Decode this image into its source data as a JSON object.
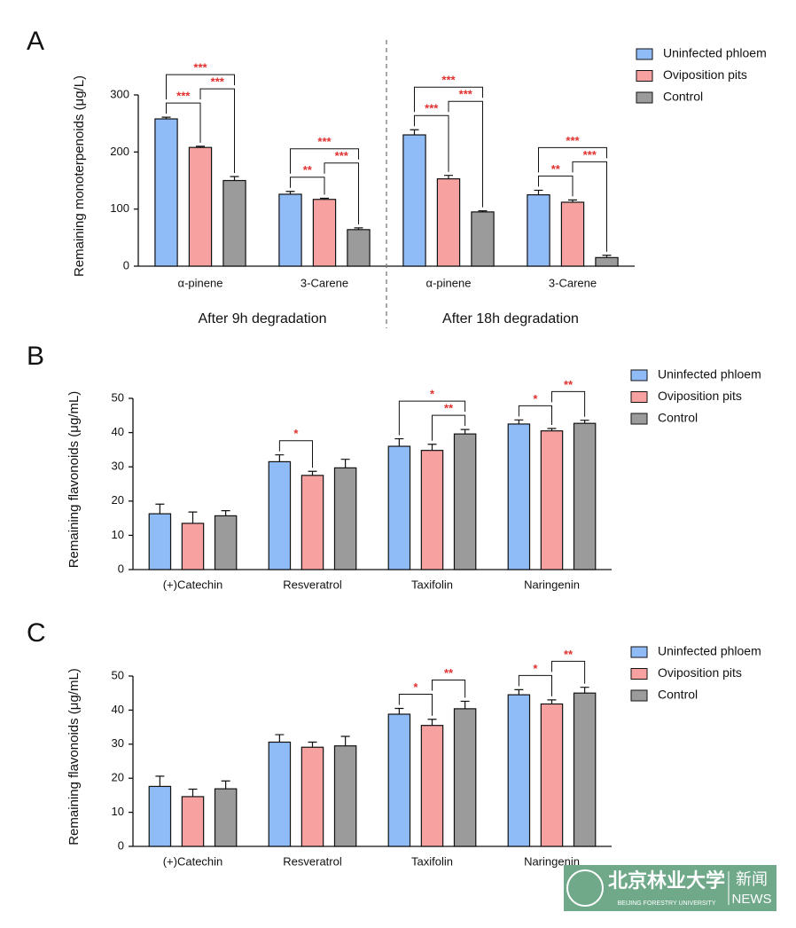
{
  "chart_data": [
    {
      "type": "bar",
      "panel_label": "A",
      "y_label": "Remaining monoterpenoids (μg/L)",
      "categories": [
        "α-pinene",
        "3-Carene",
        "α-pinene",
        "3-Carene"
      ],
      "group_labels": [
        "After 9h degradation",
        "After 18h degradation"
      ],
      "ylim": [
        0,
        300
      ],
      "yticks": [
        0,
        100,
        200,
        300
      ],
      "series": [
        {
          "name": "Uninfected phloem",
          "color": "#8fbcf7",
          "values": [
            258,
            126,
            230,
            125
          ],
          "errors": [
            3,
            5,
            9,
            8
          ]
        },
        {
          "name": "Oviposition pits",
          "color": "#f7a1a1",
          "values": [
            208,
            117,
            153,
            112
          ],
          "errors": [
            2,
            2,
            6,
            4
          ]
        },
        {
          "name": "Control",
          "color": "#9b9b9b",
          "values": [
            150,
            64,
            95,
            15
          ],
          "errors": [
            7,
            3,
            2,
            4
          ]
        }
      ],
      "annotations": [
        {
          "text": "***",
          "category": 0,
          "pair": [
            0,
            1
          ]
        },
        {
          "text": "***",
          "category": 0,
          "pair": [
            1,
            2
          ]
        },
        {
          "text": "***",
          "category": 0,
          "pair": [
            0,
            2
          ]
        },
        {
          "text": "**",
          "category": 1,
          "pair": [
            0,
            1
          ]
        },
        {
          "text": "***",
          "category": 1,
          "pair": [
            1,
            2
          ]
        },
        {
          "text": "***",
          "category": 1,
          "pair": [
            0,
            2
          ]
        },
        {
          "text": "***",
          "category": 2,
          "pair": [
            0,
            1
          ]
        },
        {
          "text": "***",
          "category": 2,
          "pair": [
            1,
            2
          ]
        },
        {
          "text": "***",
          "category": 2,
          "pair": [
            0,
            2
          ]
        },
        {
          "text": "**",
          "category": 3,
          "pair": [
            0,
            1
          ]
        },
        {
          "text": "***",
          "category": 3,
          "pair": [
            1,
            2
          ]
        },
        {
          "text": "***",
          "category": 3,
          "pair": [
            0,
            2
          ]
        }
      ]
    },
    {
      "type": "bar",
      "panel_label": "B",
      "y_label": "Remaining flavonoids (μg/mL)",
      "categories": [
        "(+)Catechin",
        "Resveratrol",
        "Taxifolin",
        "Naringenin"
      ],
      "ylim": [
        0,
        50
      ],
      "yticks": [
        0,
        10,
        20,
        30,
        40,
        50
      ],
      "series": [
        {
          "name": "Uninfected phloem",
          "color": "#8fbcf7",
          "values": [
            16.3,
            31.5,
            36,
            42.5
          ],
          "errors": [
            2.8,
            2,
            2.2,
            1.2
          ]
        },
        {
          "name": "Oviposition pits",
          "color": "#f7a1a1",
          "values": [
            13.5,
            27.5,
            34.8,
            40.5
          ],
          "errors": [
            3.3,
            1.2,
            1.8,
            0.7
          ]
        },
        {
          "name": "Control",
          "color": "#9b9b9b",
          "values": [
            15.7,
            29.7,
            39.6,
            42.7
          ],
          "errors": [
            1.5,
            2.5,
            1.3,
            0.9
          ]
        }
      ],
      "annotations": [
        {
          "text": "*",
          "category": 1,
          "pair": [
            0,
            1
          ]
        },
        {
          "text": "**",
          "category": 2,
          "pair": [
            1,
            2
          ]
        },
        {
          "text": "*",
          "category": 2,
          "pair": [
            0,
            2
          ]
        },
        {
          "text": "*",
          "category": 3,
          "pair": [
            0,
            1
          ]
        },
        {
          "text": "**",
          "category": 3,
          "pair": [
            1,
            2
          ]
        }
      ]
    },
    {
      "type": "bar",
      "panel_label": "C",
      "y_label": "Remaining flavonoids (μg/mL)",
      "categories": [
        "(+)Catechin",
        "Resveratrol",
        "Taxifolin",
        "Naringenin"
      ],
      "ylim": [
        0,
        50
      ],
      "yticks": [
        0,
        10,
        20,
        30,
        40,
        50
      ],
      "series": [
        {
          "name": "Uninfected phloem",
          "color": "#8fbcf7",
          "values": [
            17.6,
            30.6,
            38.8,
            44.5
          ],
          "errors": [
            3,
            2.2,
            1.7,
            1.5
          ]
        },
        {
          "name": "Oviposition pits",
          "color": "#f7a1a1",
          "values": [
            14.6,
            29.1,
            35.5,
            41.8
          ],
          "errors": [
            2.2,
            1.5,
            1.8,
            1.2
          ]
        },
        {
          "name": "Control",
          "color": "#9b9b9b",
          "values": [
            16.9,
            29.5,
            40.4,
            45
          ],
          "errors": [
            2.3,
            2.8,
            2.2,
            1.7
          ]
        }
      ],
      "annotations": [
        {
          "text": "*",
          "category": 2,
          "pair": [
            0,
            1
          ]
        },
        {
          "text": "**",
          "category": 2,
          "pair": [
            1,
            2
          ]
        },
        {
          "text": "*",
          "category": 3,
          "pair": [
            0,
            1
          ]
        },
        {
          "text": "**",
          "category": 3,
          "pair": [
            1,
            2
          ]
        }
      ]
    }
  ],
  "watermark": {
    "name_cn": "北京林业大学",
    "name_en": "BEIJING FORESTRY UNIVERSITY",
    "tag_cn": "新闻",
    "tag_en": "NEWS"
  }
}
